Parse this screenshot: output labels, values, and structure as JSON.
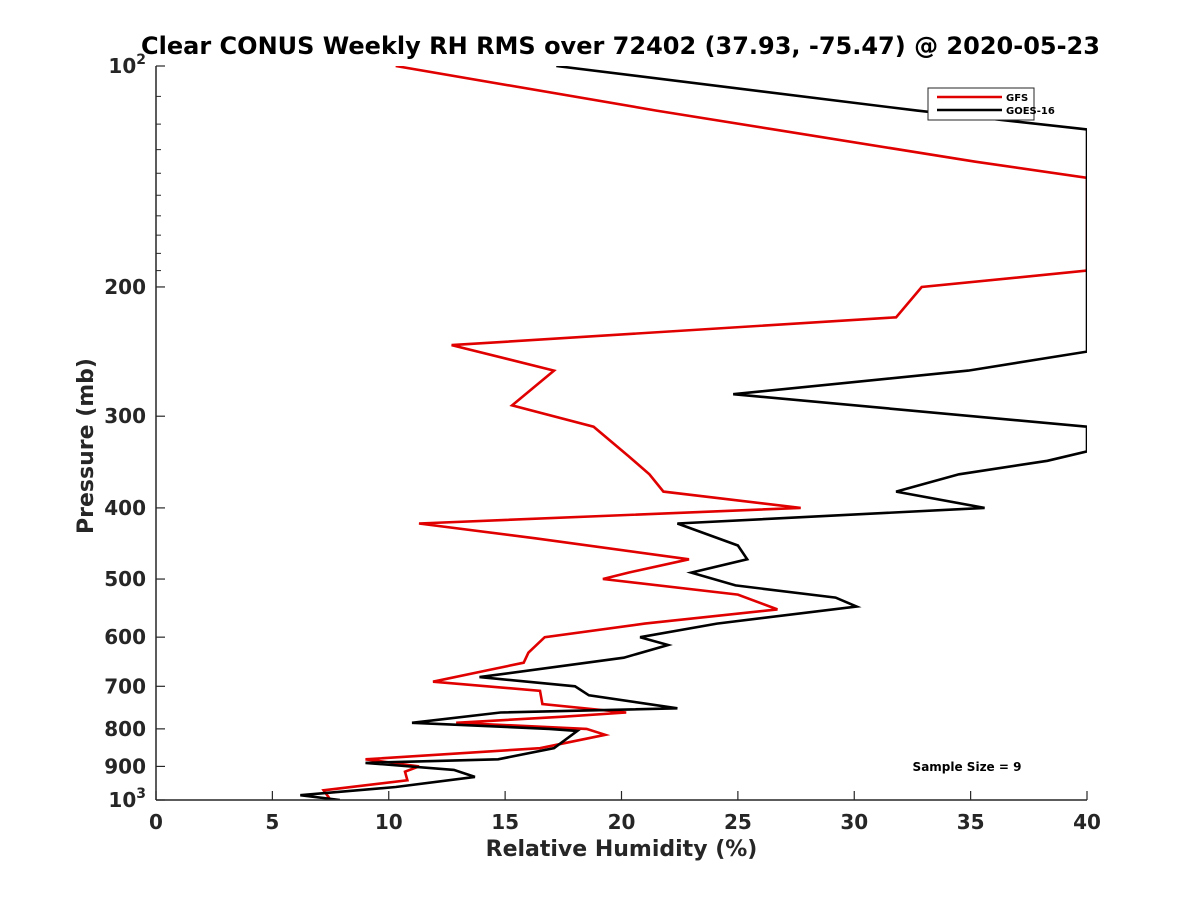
{
  "chart_data": {
    "type": "line",
    "title": "Clear CONUS Weekly RH RMS over 72402 (37.93, -75.47) @ 2020-05-23",
    "xlabel": "Relative Humidity (%)",
    "ylabel": "Pressure (mb)",
    "xlim": [
      0,
      40
    ],
    "ylim": [
      100,
      1000
    ],
    "yscale": "log",
    "yreverse": true,
    "xticks": [
      0,
      5,
      10,
      15,
      20,
      25,
      30,
      35,
      40
    ],
    "xtick_labels": [
      "0",
      "5",
      "10",
      "15",
      "20",
      "25",
      "30",
      "35",
      "40"
    ],
    "yticks": [
      200,
      300,
      400,
      500,
      600,
      700,
      800,
      900
    ],
    "ytick_labels": [
      "200",
      "300",
      "400",
      "500",
      "600",
      "700",
      "800",
      "900"
    ],
    "ytick_top": {
      "base": "10",
      "exp": "2"
    },
    "ytick_bottom": {
      "base": "10",
      "exp": "3"
    },
    "legend_position": "top-right",
    "annotation": "Sample Size = 9",
    "series": [
      {
        "name": "GFS",
        "color": "#e00000",
        "points": [
          [
            10.3,
            100
          ],
          [
            21.5,
            115
          ],
          [
            35.2,
            135
          ],
          [
            40,
            142
          ],
          [
            40,
            190
          ],
          [
            32.9,
            200
          ],
          [
            31.8,
            220
          ],
          [
            12.7,
            240
          ],
          [
            17.1,
            260
          ],
          [
            15.3,
            290
          ],
          [
            18.8,
            310
          ],
          [
            20.3,
            340
          ],
          [
            21.2,
            360
          ],
          [
            21.8,
            380
          ],
          [
            27.7,
            400
          ],
          [
            11.3,
            420
          ],
          [
            16.3,
            440
          ],
          [
            22.9,
            470
          ],
          [
            20.3,
            490
          ],
          [
            19.2,
            500
          ],
          [
            25.0,
            525
          ],
          [
            26.7,
            550
          ],
          [
            21.0,
            575
          ],
          [
            16.7,
            600
          ],
          [
            16.0,
            630
          ],
          [
            15.8,
            650
          ],
          [
            14.3,
            665
          ],
          [
            11.9,
            690
          ],
          [
            16.5,
            710
          ],
          [
            16.6,
            740
          ],
          [
            20.2,
            760
          ],
          [
            17.5,
            770
          ],
          [
            12.9,
            785
          ],
          [
            18.5,
            800
          ],
          [
            19.3,
            815
          ],
          [
            16.5,
            850
          ],
          [
            9.0,
            880
          ],
          [
            11.3,
            900
          ],
          [
            10.7,
            915
          ],
          [
            10.8,
            940
          ],
          [
            7.2,
            970
          ],
          [
            7.5,
            1000
          ]
        ]
      },
      {
        "name": "GOES-16",
        "color": "#000000",
        "points": [
          [
            17.2,
            100
          ],
          [
            32.7,
            115
          ],
          [
            40,
            122
          ],
          [
            40,
            245
          ],
          [
            34.9,
            260
          ],
          [
            24.8,
            280
          ],
          [
            40,
            310
          ],
          [
            40,
            335
          ],
          [
            38.3,
            345
          ],
          [
            34.5,
            360
          ],
          [
            31.8,
            380
          ],
          [
            35.6,
            400
          ],
          [
            22.4,
            420
          ],
          [
            25.0,
            450
          ],
          [
            25.4,
            470
          ],
          [
            23.0,
            490
          ],
          [
            24.9,
            510
          ],
          [
            29.2,
            530
          ],
          [
            30.1,
            545
          ],
          [
            24.1,
            575
          ],
          [
            20.8,
            600
          ],
          [
            22.0,
            615
          ],
          [
            20.1,
            640
          ],
          [
            13.9,
            680
          ],
          [
            18.0,
            700
          ],
          [
            18.6,
            720
          ],
          [
            22.4,
            750
          ],
          [
            14.8,
            760
          ],
          [
            11.0,
            785
          ],
          [
            16.9,
            800
          ],
          [
            18.1,
            805
          ],
          [
            17.1,
            850
          ],
          [
            14.7,
            880
          ],
          [
            9.0,
            890
          ],
          [
            12.8,
            910
          ],
          [
            13.7,
            930
          ],
          [
            10.3,
            960
          ],
          [
            6.2,
            985
          ],
          [
            7.9,
            1000
          ]
        ]
      }
    ]
  }
}
